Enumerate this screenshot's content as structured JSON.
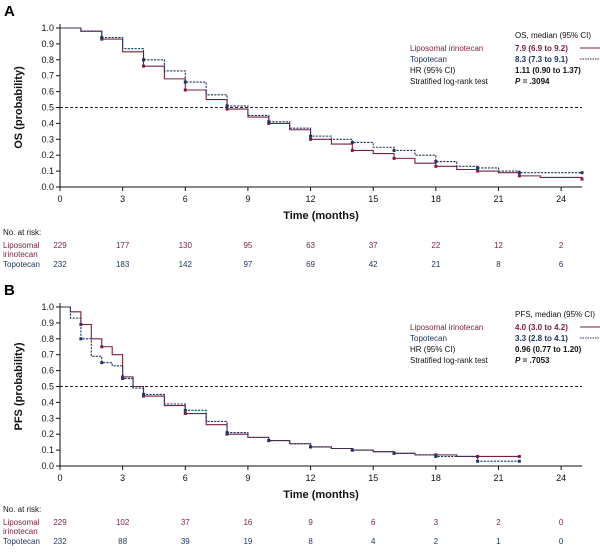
{
  "colors": {
    "liposomal": "#7b1f3c",
    "topotecan": "#1f3563",
    "axis": "#111111",
    "ref": "#222222"
  },
  "risk_header": "No. at risk:",
  "chart_data": [
    {
      "panel": "A",
      "type": "line",
      "subtype": "kaplan-meier",
      "ylabel": "OS (probability)",
      "xlabel": "Time (months)",
      "xlim": [
        0,
        25
      ],
      "ylim": [
        0,
        1.0
      ],
      "xticks": [
        0,
        3,
        6,
        9,
        12,
        15,
        18,
        21,
        24
      ],
      "yticks": [
        0,
        0.1,
        0.2,
        0.3,
        0.4,
        0.5,
        0.6,
        0.7,
        0.8,
        0.9,
        1.0
      ],
      "reference_line_y": 0.5,
      "legend_title": "OS, median (95% CI)",
      "legend": [
        {
          "name": "Liposomal irinotecan",
          "value": "7.9 (6.9 to 9.2)"
        },
        {
          "name": "Topotecan",
          "value": "8.3 (7.3 to 9.1)"
        }
      ],
      "stats": [
        {
          "label": "HR (95% CI)",
          "value": "1.11 (0.90 to 1.37)"
        },
        {
          "label": "Stratified log-rank test",
          "value_prefix": "P",
          "value": " = .3094"
        }
      ],
      "series": [
        {
          "name": "Liposomal irinotecan",
          "x": [
            0,
            1,
            2,
            3,
            4,
            5,
            6,
            7,
            8,
            9,
            10,
            11,
            12,
            13,
            14,
            15,
            16,
            17,
            18,
            19,
            20,
            21,
            22,
            23,
            25
          ],
          "y": [
            1.0,
            0.98,
            0.93,
            0.85,
            0.76,
            0.68,
            0.61,
            0.55,
            0.49,
            0.44,
            0.4,
            0.36,
            0.3,
            0.27,
            0.23,
            0.21,
            0.18,
            0.15,
            0.13,
            0.11,
            0.1,
            0.09,
            0.07,
            0.06,
            0.05
          ]
        },
        {
          "name": "Topotecan",
          "x": [
            0,
            1,
            2,
            3,
            4,
            5,
            6,
            7,
            8,
            9,
            10,
            11,
            12,
            13,
            14,
            15,
            16,
            17,
            18,
            19,
            20,
            21,
            22,
            23,
            25
          ],
          "y": [
            1.0,
            0.98,
            0.94,
            0.87,
            0.8,
            0.73,
            0.66,
            0.58,
            0.51,
            0.45,
            0.41,
            0.37,
            0.32,
            0.3,
            0.28,
            0.25,
            0.23,
            0.2,
            0.16,
            0.13,
            0.12,
            0.1,
            0.09,
            0.09,
            0.09
          ]
        }
      ],
      "at_risk": {
        "times": [
          0,
          3,
          6,
          9,
          12,
          15,
          18,
          21,
          24
        ],
        "rows": [
          {
            "label_line1": "Liposomal",
            "label_line2": "irinotecan",
            "values": [
              "229",
              "177",
              "130",
              "95",
              "63",
              "37",
              "22",
              "12",
              "2"
            ]
          },
          {
            "label_line1": "Topotecan",
            "label_line2": "",
            "values": [
              "232",
              "183",
              "142",
              "97",
              "69",
              "42",
              "21",
              "8",
              "6"
            ]
          }
        ]
      }
    },
    {
      "panel": "B",
      "type": "line",
      "subtype": "kaplan-meier",
      "ylabel": "PFS (probability)",
      "xlabel": "Time (months)",
      "xlim": [
        0,
        25
      ],
      "ylim": [
        0,
        1.0
      ],
      "xticks": [
        0,
        3,
        6,
        9,
        12,
        15,
        18,
        21,
        24
      ],
      "yticks": [
        0,
        0.1,
        0.2,
        0.3,
        0.4,
        0.5,
        0.6,
        0.7,
        0.8,
        0.9,
        1.0
      ],
      "reference_line_y": 0.5,
      "legend_title": "PFS, median (95% CI)",
      "legend": [
        {
          "name": "Liposomal irinotecan",
          "value": "4.0 (3.0 to 4.2)"
        },
        {
          "name": "Topotecan",
          "value": "3.3 (2.8 to 4.1)"
        }
      ],
      "stats": [
        {
          "label": "HR (95% CI)",
          "value": "0.96 (0.77 to 1.20)"
        },
        {
          "label": "Stratified log-rank test",
          "value_prefix": "P",
          "value": " = .7053"
        }
      ],
      "series": [
        {
          "name": "Liposomal irinotecan",
          "x": [
            0,
            0.5,
            1,
            1.5,
            2,
            2.5,
            3,
            3.5,
            4,
            5,
            6,
            7,
            8,
            9,
            10,
            11,
            12,
            13,
            14,
            15,
            16,
            17,
            18,
            19,
            20,
            21,
            22
          ],
          "y": [
            1.0,
            0.97,
            0.89,
            0.8,
            0.75,
            0.7,
            0.56,
            0.5,
            0.44,
            0.38,
            0.33,
            0.26,
            0.2,
            0.18,
            0.16,
            0.14,
            0.12,
            0.11,
            0.1,
            0.09,
            0.08,
            0.07,
            0.07,
            0.06,
            0.06,
            0.06,
            0.06
          ]
        },
        {
          "name": "Topotecan",
          "x": [
            0,
            0.5,
            1,
            1.5,
            2,
            2.5,
            3,
            3.5,
            4,
            5,
            6,
            7,
            8,
            9,
            10,
            11,
            12,
            13,
            14,
            15,
            16,
            17,
            18,
            19,
            20,
            21,
            22
          ],
          "y": [
            1.0,
            0.93,
            0.8,
            0.69,
            0.65,
            0.63,
            0.55,
            0.49,
            0.45,
            0.39,
            0.35,
            0.28,
            0.21,
            0.18,
            0.16,
            0.14,
            0.12,
            0.11,
            0.1,
            0.09,
            0.08,
            0.07,
            0.06,
            0.06,
            0.03,
            0.03,
            0.03
          ]
        }
      ],
      "at_risk": {
        "times": [
          0,
          3,
          6,
          9,
          12,
          15,
          18,
          21,
          24
        ],
        "rows": [
          {
            "label_line1": "Liposomal",
            "label_line2": "irinotecan",
            "values": [
              "229",
              "102",
              "37",
              "16",
              "9",
              "6",
              "3",
              "2",
              "0"
            ]
          },
          {
            "label_line1": "Topotecan",
            "label_line2": "",
            "values": [
              "232",
              "88",
              "39",
              "19",
              "8",
              "4",
              "2",
              "1",
              "0"
            ]
          }
        ]
      }
    }
  ]
}
